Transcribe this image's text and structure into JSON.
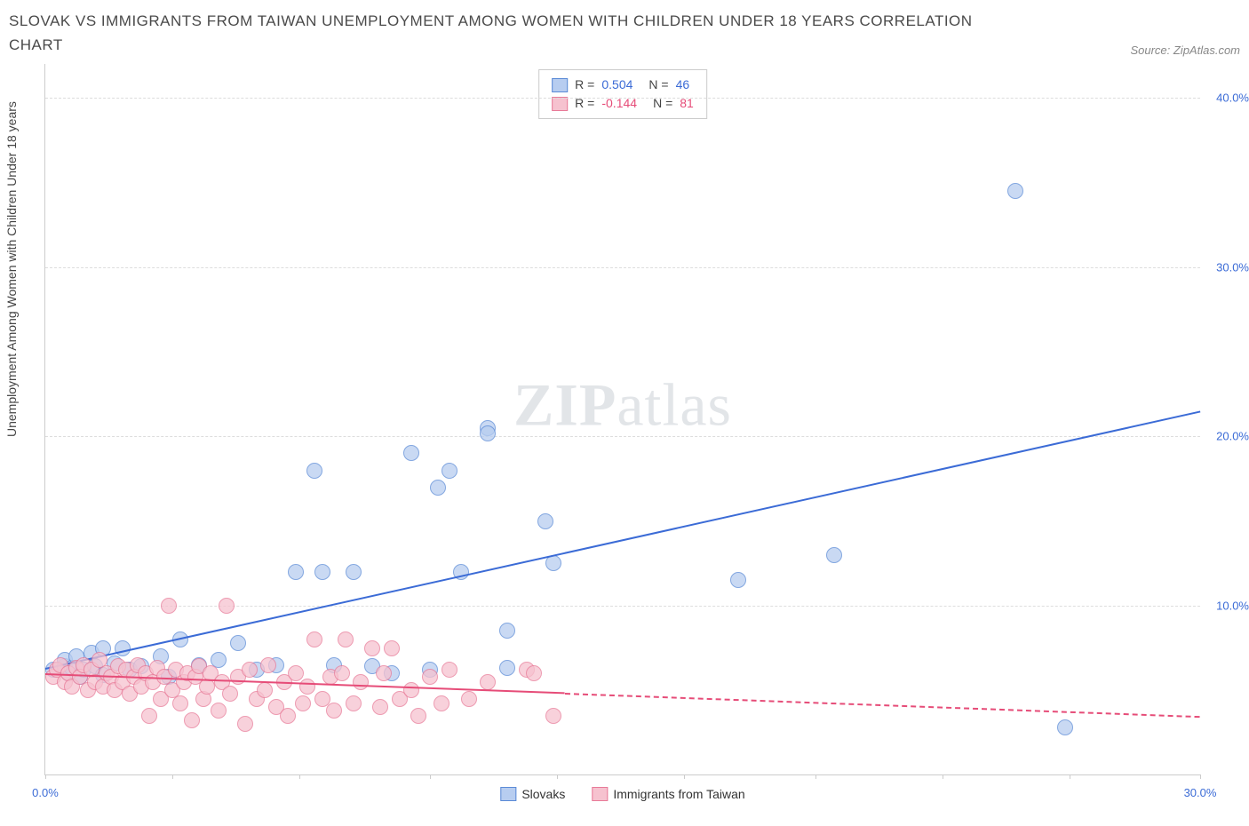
{
  "title": "SLOVAK VS IMMIGRANTS FROM TAIWAN UNEMPLOYMENT AMONG WOMEN WITH CHILDREN UNDER 18 YEARS CORRELATION CHART",
  "source": "Source: ZipAtlas.com",
  "ylabel": "Unemployment Among Women with Children Under 18 years",
  "watermark_a": "ZIP",
  "watermark_b": "atlas",
  "chart": {
    "type": "scatter",
    "background_color": "#ffffff",
    "grid_color": "#dddddd",
    "axis_color": "#cccccc",
    "xlim": [
      0,
      30
    ],
    "ylim": [
      0,
      42
    ],
    "xtick_positions": [
      0,
      3.3,
      6.6,
      10,
      13.3,
      16.6,
      20,
      23.3,
      26.6,
      30
    ],
    "xtick_labels": {
      "0": "0.0%",
      "30": "30.0%"
    },
    "xtick_color": "#3b6bd6",
    "yticks": [
      10,
      20,
      30,
      40
    ],
    "ytick_suffix": ".0%",
    "ytick_color": "#3b6bd6",
    "marker_radius": 8,
    "marker_border_width": 1,
    "series": [
      {
        "name": "Slovaks",
        "fill": "#b7cdf0",
        "stroke": "#5a8ad6",
        "line_color": "#3b6bd6",
        "R_label": "R =",
        "R": "0.504",
        "N_label": "N =",
        "N": "46",
        "trend": {
          "x1": 0,
          "y1": 6.3,
          "x2": 30,
          "y2": 21.5,
          "dash_from": 30
        },
        "points": [
          [
            0.2,
            6.2
          ],
          [
            0.5,
            6.4
          ],
          [
            0.5,
            6.8
          ],
          [
            0.6,
            6.0
          ],
          [
            0.7,
            6.3
          ],
          [
            0.8,
            7.0
          ],
          [
            0.9,
            5.8
          ],
          [
            1.0,
            6.2
          ],
          [
            1.2,
            7.2
          ],
          [
            1.3,
            6.4
          ],
          [
            1.5,
            5.9
          ],
          [
            1.5,
            7.5
          ],
          [
            1.8,
            6.6
          ],
          [
            2.0,
            7.5
          ],
          [
            2.2,
            6.2
          ],
          [
            2.5,
            6.4
          ],
          [
            3.0,
            7.0
          ],
          [
            3.2,
            5.8
          ],
          [
            3.5,
            8.0
          ],
          [
            4.0,
            6.5
          ],
          [
            4.5,
            6.8
          ],
          [
            5.0,
            7.8
          ],
          [
            5.5,
            6.2
          ],
          [
            6.0,
            6.5
          ],
          [
            6.5,
            12.0
          ],
          [
            7.0,
            18.0
          ],
          [
            7.2,
            12.0
          ],
          [
            7.5,
            6.5
          ],
          [
            8.0,
            12.0
          ],
          [
            8.5,
            6.4
          ],
          [
            9.0,
            6.0
          ],
          [
            9.5,
            19.0
          ],
          [
            10.0,
            6.2
          ],
          [
            10.2,
            17.0
          ],
          [
            10.5,
            18.0
          ],
          [
            10.8,
            12.0
          ],
          [
            11.5,
            20.5
          ],
          [
            11.5,
            20.2
          ],
          [
            12.0,
            8.5
          ],
          [
            12.0,
            6.3
          ],
          [
            13.0,
            15.0
          ],
          [
            13.2,
            12.5
          ],
          [
            18.0,
            11.5
          ],
          [
            20.5,
            13.0
          ],
          [
            25.2,
            34.5
          ],
          [
            26.5,
            2.8
          ]
        ]
      },
      {
        "name": "Immigrants from Taiwan",
        "fill": "#f6c2cf",
        "stroke": "#e87a98",
        "line_color": "#e64c78",
        "R_label": "R =",
        "R": "-0.144",
        "N_label": "N =",
        "N": "81",
        "trend": {
          "x1": 0,
          "y1": 6.0,
          "x2": 30,
          "y2": 3.5,
          "dash_from": 13.5
        },
        "points": [
          [
            0.2,
            5.8
          ],
          [
            0.3,
            6.2
          ],
          [
            0.4,
            6.5
          ],
          [
            0.5,
            5.5
          ],
          [
            0.6,
            6.0
          ],
          [
            0.7,
            5.2
          ],
          [
            0.8,
            6.3
          ],
          [
            0.9,
            5.8
          ],
          [
            1.0,
            6.5
          ],
          [
            1.1,
            5.0
          ],
          [
            1.2,
            6.2
          ],
          [
            1.3,
            5.5
          ],
          [
            1.4,
            6.8
          ],
          [
            1.5,
            5.2
          ],
          [
            1.6,
            6.0
          ],
          [
            1.7,
            5.8
          ],
          [
            1.8,
            5.0
          ],
          [
            1.9,
            6.4
          ],
          [
            2.0,
            5.5
          ],
          [
            2.1,
            6.2
          ],
          [
            2.2,
            4.8
          ],
          [
            2.3,
            5.8
          ],
          [
            2.4,
            6.5
          ],
          [
            2.5,
            5.2
          ],
          [
            2.6,
            6.0
          ],
          [
            2.7,
            3.5
          ],
          [
            2.8,
            5.5
          ],
          [
            2.9,
            6.3
          ],
          [
            3.0,
            4.5
          ],
          [
            3.1,
            5.8
          ],
          [
            3.2,
            10.0
          ],
          [
            3.3,
            5.0
          ],
          [
            3.4,
            6.2
          ],
          [
            3.5,
            4.2
          ],
          [
            3.6,
            5.5
          ],
          [
            3.7,
            6.0
          ],
          [
            3.8,
            3.2
          ],
          [
            3.9,
            5.8
          ],
          [
            4.0,
            6.4
          ],
          [
            4.1,
            4.5
          ],
          [
            4.2,
            5.2
          ],
          [
            4.3,
            6.0
          ],
          [
            4.5,
            3.8
          ],
          [
            4.6,
            5.5
          ],
          [
            4.7,
            10.0
          ],
          [
            4.8,
            4.8
          ],
          [
            5.0,
            5.8
          ],
          [
            5.2,
            3.0
          ],
          [
            5.3,
            6.2
          ],
          [
            5.5,
            4.5
          ],
          [
            5.7,
            5.0
          ],
          [
            5.8,
            6.5
          ],
          [
            6.0,
            4.0
          ],
          [
            6.2,
            5.5
          ],
          [
            6.3,
            3.5
          ],
          [
            6.5,
            6.0
          ],
          [
            6.7,
            4.2
          ],
          [
            6.8,
            5.2
          ],
          [
            7.0,
            8.0
          ],
          [
            7.2,
            4.5
          ],
          [
            7.4,
            5.8
          ],
          [
            7.5,
            3.8
          ],
          [
            7.7,
            6.0
          ],
          [
            7.8,
            8.0
          ],
          [
            8.0,
            4.2
          ],
          [
            8.2,
            5.5
          ],
          [
            8.5,
            7.5
          ],
          [
            8.7,
            4.0
          ],
          [
            8.8,
            6.0
          ],
          [
            9.0,
            7.5
          ],
          [
            9.2,
            4.5
          ],
          [
            9.5,
            5.0
          ],
          [
            9.7,
            3.5
          ],
          [
            10.0,
            5.8
          ],
          [
            10.3,
            4.2
          ],
          [
            10.5,
            6.2
          ],
          [
            11.0,
            4.5
          ],
          [
            11.5,
            5.5
          ],
          [
            12.5,
            6.2
          ],
          [
            12.7,
            6.0
          ],
          [
            13.2,
            3.5
          ]
        ]
      }
    ]
  }
}
